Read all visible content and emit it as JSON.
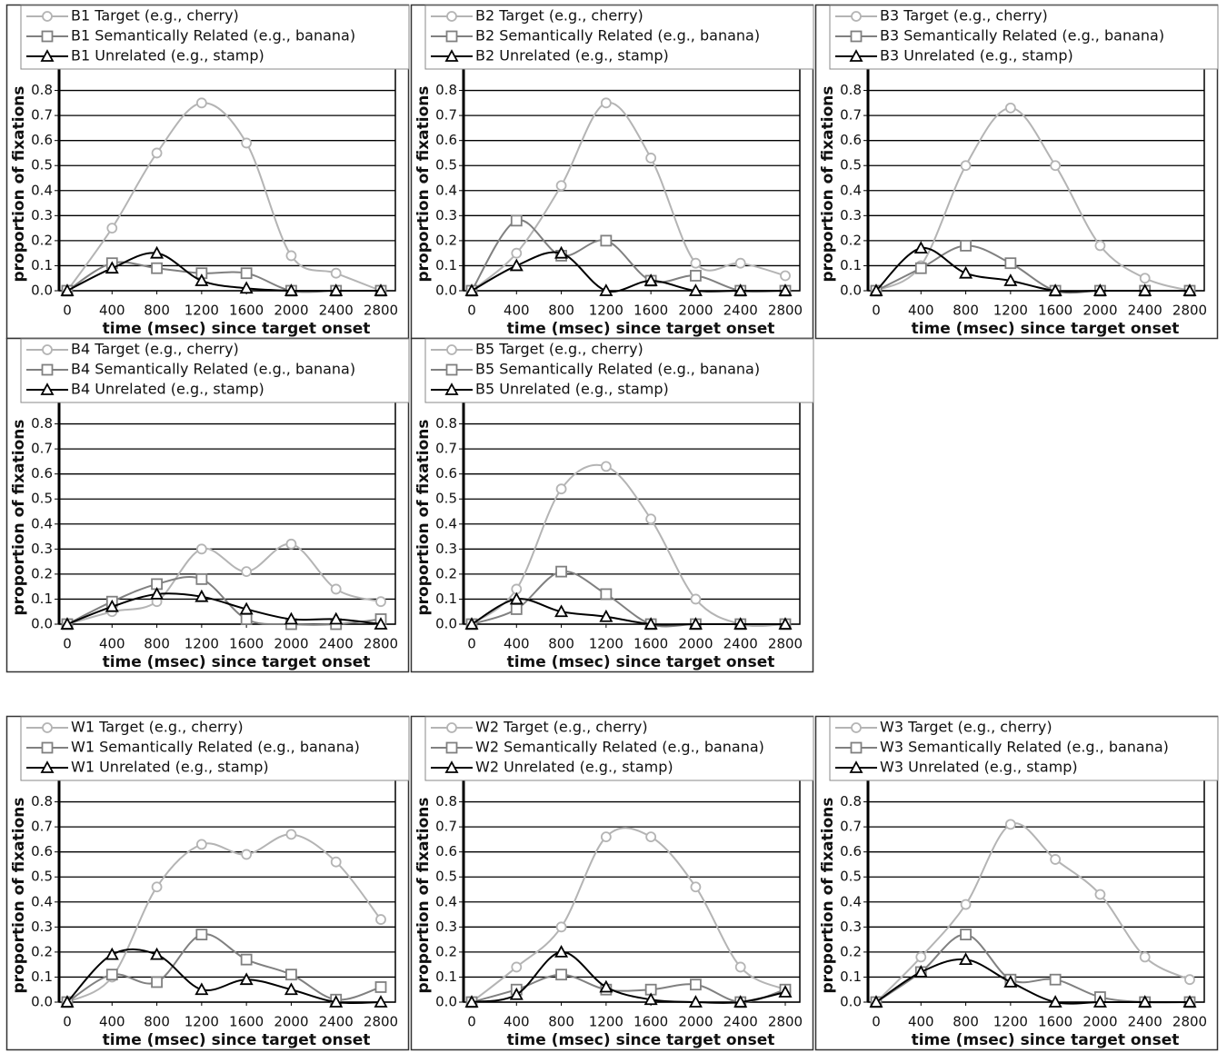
{
  "chart_data": [
    {
      "type": "line",
      "x": [
        0,
        400,
        800,
        1200,
        1600,
        2000,
        2400,
        2800
      ],
      "xlim": [
        0,
        2800
      ],
      "xticks": [
        0,
        400,
        800,
        1200,
        1600,
        2000,
        2400,
        2800
      ],
      "ylim": [
        0,
        0.9
      ],
      "yticks": [
        {
          "value": 0,
          "label": "0.0"
        },
        0.1,
        0.2,
        0.3,
        0.4,
        0.5,
        0.6,
        0.7,
        0.8
      ],
      "grid": true,
      "x_label": "time (msec) since target onset",
      "y_label": "proportion of fixations",
      "series": [
        {
          "name": "B1 Target (e.g., cherry)",
          "color": "#b4b4b4",
          "marker": "circle",
          "values": [
            0,
            0.25,
            0.55,
            0.75,
            0.59,
            0.14,
            0.07,
            0
          ]
        },
        {
          "name": "B1 Semantically Related (e.g., banana)",
          "color": "#808080",
          "marker": "square",
          "values": [
            0,
            0.11,
            0.09,
            0.07,
            0.07,
            0,
            0,
            0
          ]
        },
        {
          "name": "B1 Unrelated (e.g., stamp)",
          "color": "#000000",
          "marker": "triangle",
          "values": [
            0,
            0.09,
            0.15,
            0.04,
            0.01,
            0,
            0,
            0
          ]
        }
      ]
    },
    {
      "type": "line",
      "x": [
        0,
        400,
        800,
        1200,
        1600,
        2000,
        2400,
        2800
      ],
      "xlim": [
        0,
        2800
      ],
      "xticks": [
        0,
        400,
        800,
        1200,
        1600,
        2000,
        2400,
        2800
      ],
      "ylim": [
        0,
        0.9
      ],
      "yticks": [
        {
          "value": 0,
          "label": "0.0"
        },
        0.1,
        0.2,
        0.3,
        0.4,
        0.5,
        0.6,
        0.7,
        0.8
      ],
      "grid": true,
      "x_label": "time (msec) since target onset",
      "y_label": "proportion of fixations",
      "series": [
        {
          "name": "B2 Target (e.g., cherry)",
          "color": "#b4b4b4",
          "marker": "circle",
          "values": [
            0,
            0.15,
            0.42,
            0.75,
            0.53,
            0.11,
            0.11,
            0.06
          ]
        },
        {
          "name": "B2 Semantically Related (e.g., banana)",
          "color": "#808080",
          "marker": "square",
          "values": [
            0,
            0.28,
            0.14,
            0.2,
            0.04,
            0.06,
            0,
            0
          ]
        },
        {
          "name": "B2 Unrelated (e.g., stamp)",
          "color": "#000000",
          "marker": "triangle",
          "values": [
            0,
            0.1,
            0.15,
            0,
            0.04,
            0,
            0,
            0
          ]
        }
      ]
    },
    {
      "type": "line",
      "x": [
        0,
        400,
        800,
        1200,
        1600,
        2000,
        2400,
        2800
      ],
      "xlim": [
        0,
        2800
      ],
      "xticks": [
        0,
        400,
        800,
        1200,
        1600,
        2000,
        2400,
        2800
      ],
      "ylim": [
        0,
        0.9
      ],
      "yticks": [
        {
          "value": 0,
          "label": "0.0"
        },
        0.1,
        0.2,
        0.3,
        0.4,
        0.5,
        0.6,
        0.7,
        0.8
      ],
      "grid": true,
      "x_label": "time (msec) since target onset",
      "y_label": "proportion of fixations",
      "series": [
        {
          "name": "B3 Target (e.g., cherry)",
          "color": "#b4b4b4",
          "marker": "circle",
          "values": [
            0,
            0.1,
            0.5,
            0.73,
            0.5,
            0.18,
            0.05,
            0
          ]
        },
        {
          "name": "B3 Semantically Related (e.g., banana)",
          "color": "#808080",
          "marker": "square",
          "values": [
            0,
            0.09,
            0.18,
            0.11,
            0,
            0,
            0,
            0
          ]
        },
        {
          "name": "B3 Unrelated (e.g., stamp)",
          "color": "#000000",
          "marker": "triangle",
          "values": [
            0,
            0.17,
            0.07,
            0.04,
            0,
            0,
            0,
            0
          ]
        }
      ]
    },
    {
      "type": "line",
      "x": [
        0,
        400,
        800,
        1200,
        1600,
        2000,
        2400,
        2800
      ],
      "xlim": [
        0,
        2800
      ],
      "xticks": [
        0,
        400,
        800,
        1200,
        1600,
        2000,
        2400,
        2800
      ],
      "ylim": [
        0,
        0.9
      ],
      "yticks": [
        {
          "value": 0,
          "label": "0.0"
        },
        0.1,
        0.2,
        0.3,
        0.4,
        0.5,
        0.6,
        0.7,
        0.8
      ],
      "grid": true,
      "x_label": "time (msec) since target onset",
      "y_label": "proportion of fixations",
      "series": [
        {
          "name": "B4 Target (e.g., cherry)",
          "color": "#b4b4b4",
          "marker": "circle",
          "values": [
            0,
            0.05,
            0.09,
            0.3,
            0.21,
            0.32,
            0.14,
            0.09
          ]
        },
        {
          "name": "B4 Semantically Related (e.g., banana)",
          "color": "#808080",
          "marker": "square",
          "values": [
            0,
            0.09,
            0.16,
            0.18,
            0.02,
            0,
            0,
            0.02
          ]
        },
        {
          "name": "B4 Unrelated (e.g., stamp)",
          "color": "#000000",
          "marker": "triangle",
          "values": [
            0,
            0.07,
            0.12,
            0.11,
            0.06,
            0.02,
            0.02,
            0
          ]
        }
      ]
    },
    {
      "type": "line",
      "x": [
        0,
        400,
        800,
        1200,
        1600,
        2000,
        2400,
        2800
      ],
      "xlim": [
        0,
        2800
      ],
      "xticks": [
        0,
        400,
        800,
        1200,
        1600,
        2000,
        2400,
        2800
      ],
      "ylim": [
        0,
        0.9
      ],
      "yticks": [
        {
          "value": 0,
          "label": "0.0"
        },
        0.1,
        0.2,
        0.3,
        0.4,
        0.5,
        0.6,
        0.7,
        0.8
      ],
      "grid": true,
      "x_label": "time (msec) since target onset",
      "y_label": "proportion of fixations",
      "series": [
        {
          "name": "B5 Target (e.g., cherry)",
          "color": "#b4b4b4",
          "marker": "circle",
          "values": [
            0,
            0.14,
            0.54,
            0.63,
            0.42,
            0.1,
            0,
            0
          ]
        },
        {
          "name": "B5 Semantically Related (e.g., banana)",
          "color": "#808080",
          "marker": "square",
          "values": [
            0,
            0.06,
            0.21,
            0.12,
            0,
            0,
            0,
            0
          ]
        },
        {
          "name": "B5 Unrelated (e.g., stamp)",
          "color": "#000000",
          "marker": "triangle",
          "values": [
            0,
            0.1,
            0.05,
            0.03,
            0,
            0,
            0,
            0
          ]
        }
      ]
    },
    {
      "type": "line",
      "x": [
        0,
        400,
        800,
        1200,
        1600,
        2000,
        2400,
        2800
      ],
      "xlim": [
        0,
        2800
      ],
      "xticks": [
        0,
        400,
        800,
        1200,
        1600,
        2000,
        2400,
        2800
      ],
      "ylim": [
        0,
        0.9
      ],
      "yticks": [
        {
          "value": 0,
          "label": "0.0"
        },
        0.1,
        0.2,
        0.3,
        0.4,
        0.5,
        0.6,
        0.7,
        0.8
      ],
      "grid": true,
      "x_label": "time (msec) since target onset",
      "y_label": "proportion of fixations",
      "series": [
        {
          "name": "W1 Target (e.g., cherry)",
          "color": "#b4b4b4",
          "marker": "circle",
          "values": [
            0,
            0.1,
            0.46,
            0.63,
            0.59,
            0.67,
            0.56,
            0.33
          ]
        },
        {
          "name": "W1 Semantically Related (e.g., banana)",
          "color": "#808080",
          "marker": "square",
          "values": [
            0,
            0.11,
            0.08,
            0.27,
            0.17,
            0.11,
            0.01,
            0.06
          ]
        },
        {
          "name": "W1 Unrelated (e.g., stamp)",
          "color": "#000000",
          "marker": "triangle",
          "values": [
            0,
            0.19,
            0.19,
            0.05,
            0.09,
            0.05,
            0,
            0
          ]
        }
      ]
    },
    {
      "type": "line",
      "x": [
        0,
        400,
        800,
        1200,
        1600,
        2000,
        2400,
        2800
      ],
      "xlim": [
        0,
        2800
      ],
      "xticks": [
        0,
        400,
        800,
        1200,
        1600,
        2000,
        2400,
        2800
      ],
      "ylim": [
        0,
        0.9
      ],
      "yticks": [
        {
          "value": 0,
          "label": "0.0"
        },
        0.1,
        0.2,
        0.3,
        0.4,
        0.5,
        0.6,
        0.7,
        0.8
      ],
      "grid": true,
      "x_label": "time (msec) since target onset",
      "y_label": "proportion of fixations",
      "series": [
        {
          "name": "W2 Target (e.g., cherry)",
          "color": "#b4b4b4",
          "marker": "circle",
          "values": [
            0,
            0.14,
            0.3,
            0.66,
            0.66,
            0.46,
            0.14,
            0.05
          ]
        },
        {
          "name": "W2 Semantically Related (e.g., banana)",
          "color": "#808080",
          "marker": "square",
          "values": [
            0,
            0.05,
            0.11,
            0.05,
            0.05,
            0.07,
            0,
            0.05
          ]
        },
        {
          "name": "W2 Unrelated (e.g., stamp)",
          "color": "#000000",
          "marker": "triangle",
          "values": [
            0,
            0.03,
            0.2,
            0.06,
            0.01,
            0,
            0,
            0.04
          ]
        }
      ]
    },
    {
      "type": "line",
      "x": [
        0,
        400,
        800,
        1200,
        1600,
        2000,
        2400,
        2800
      ],
      "xlim": [
        0,
        2800
      ],
      "xticks": [
        0,
        400,
        800,
        1200,
        1600,
        2000,
        2400,
        2800
      ],
      "ylim": [
        0,
        0.9
      ],
      "yticks": [
        {
          "value": 0,
          "label": "0.0"
        },
        0.1,
        0.2,
        0.3,
        0.4,
        0.5,
        0.6,
        0.7,
        0.8
      ],
      "grid": true,
      "x_label": "time (msec) since target onset",
      "y_label": "proportion of fixations",
      "series": [
        {
          "name": "W3 Target (e.g., cherry)",
          "color": "#b4b4b4",
          "marker": "circle",
          "values": [
            0,
            0.18,
            0.39,
            0.71,
            0.57,
            0.43,
            0.18,
            0.09
          ]
        },
        {
          "name": "W3 Semantically Related (e.g., banana)",
          "color": "#808080",
          "marker": "square",
          "values": [
            0,
            0.12,
            0.27,
            0.09,
            0.09,
            0.02,
            0,
            0
          ]
        },
        {
          "name": "W3 Unrelated (e.g., stamp)",
          "color": "#000000",
          "marker": "triangle",
          "values": [
            0,
            0.12,
            0.17,
            0.08,
            0,
            0,
            0,
            0
          ]
        }
      ]
    }
  ]
}
